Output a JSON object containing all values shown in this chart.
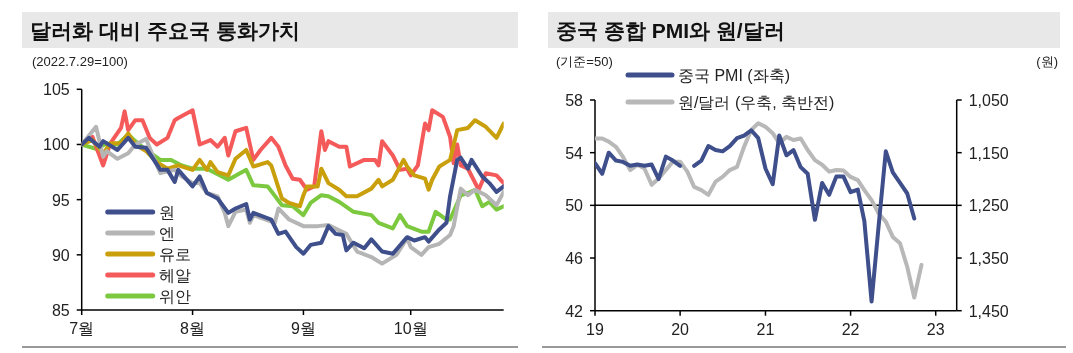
{
  "chart_data": [
    {
      "type": "line",
      "title": "달러화 대비 주요국 통화가치",
      "subtitle": "(2022.7.29=100)",
      "legend": "bottom left",
      "xlim": [
        "--07-01",
        "--10-27"
      ],
      "xticks": [
        {
          "value": "--07-01",
          "label": "7월"
        },
        {
          "value": "--08-01",
          "label": "8월"
        },
        {
          "value": "--09-01",
          "label": "9월"
        },
        {
          "value": "--10-01",
          "label": "10월"
        }
      ],
      "ylim": [
        85,
        105
      ],
      "yticks": [
        85,
        90,
        95,
        100,
        105
      ],
      "series": [
        {
          "name": "원",
          "color": "#3e4f8c",
          "x": [
            "--07-01",
            "--07-03",
            "--07-06",
            "--07-07",
            "--07-11",
            "--07-14",
            "--07-16",
            "--07-19",
            "--07-23",
            "--07-25",
            "--07-27",
            "--07-28",
            "--08-01",
            "--08-03",
            "--08-05",
            "--08-08",
            "--08-11",
            "--08-13",
            "--08-16",
            "--08-17",
            "--08-18",
            "--08-23",
            "--08-25",
            "--08-27",
            "--08-30",
            "--09-01",
            "--09-03",
            "--09-06",
            "--09-08",
            "--09-10",
            "--09-12",
            "--09-13",
            "--09-15",
            "--09-18",
            "--09-20",
            "--09-23",
            "--09-26",
            "--09-30",
            "--10-02",
            "--10-05",
            "--10-06",
            "--10-09",
            "--10-11",
            "--10-12",
            "--10-14",
            "--10-15",
            "--10-17",
            "--10-18",
            "--10-21",
            "--10-23",
            "--10-25",
            "--10-27"
          ],
          "values": [
            100,
            100.6,
            99.8,
            100.3,
            99.5,
            100.6,
            99.8,
            99.7,
            97.7,
            97.7,
            96.6,
            97.7,
            96.2,
            97.1,
            95.6,
            95.1,
            93.8,
            94.2,
            94.6,
            93.2,
            93.8,
            93.2,
            91.9,
            92.1,
            90.7,
            90.1,
            90.9,
            91.1,
            92.6,
            91.9,
            91.8,
            90.4,
            91.1,
            90.6,
            91.4,
            90.3,
            90.1,
            91.6,
            91.3,
            91.6,
            91.2,
            92.3,
            92.9,
            95.3,
            98.6,
            98.8,
            97.8,
            98.6,
            97.1,
            96.5,
            95.7,
            96.2
          ]
        },
        {
          "name": "엔",
          "color": "#b5b5b5",
          "x": [
            "--07-01",
            "--07-05",
            "--07-07",
            "--07-08",
            "--07-11",
            "--07-14",
            "--07-16",
            "--07-19",
            "--07-21",
            "--07-23",
            "--07-27",
            "--07-29",
            "--08-01",
            "--08-03",
            "--08-05",
            "--08-08",
            "--08-10",
            "--08-11",
            "--08-13",
            "--08-16",
            "--08-17",
            "--08-18",
            "--08-24",
            "--08-25",
            "--08-28",
            "--09-01",
            "--09-05",
            "--09-08",
            "--09-13",
            "--09-16",
            "--09-20",
            "--09-23",
            "--09-27",
            "--09-30",
            "--10-01",
            "--10-04",
            "--10-06",
            "--10-09",
            "--10-12",
            "--10-13",
            "--10-15",
            "--10-17",
            "--10-19",
            "--10-22",
            "--10-25",
            "--10-27"
          ],
          "values": [
            100,
            101.6,
            98.9,
            99.4,
            98.7,
            99.2,
            100,
            100.5,
            98.9,
            97.4,
            97.7,
            97.1,
            96.5,
            96.5,
            95.6,
            95.3,
            93.8,
            92.6,
            93.9,
            94.1,
            92.9,
            93.6,
            92.9,
            94.2,
            93.2,
            92.6,
            92.6,
            92.7,
            91.9,
            90.3,
            89.8,
            89.2,
            90.0,
            91.5,
            90.7,
            90.0,
            90.7,
            91.0,
            91.8,
            92.6,
            96.0,
            95.4,
            95.9,
            95.4,
            94.5,
            95.7
          ]
        },
        {
          "name": "유로",
          "color": "#c9a00c",
          "x": [
            "--07-01",
            "--07-04",
            "--07-07",
            "--07-09",
            "--07-12",
            "--07-14",
            "--07-16",
            "--07-19",
            "--07-22",
            "--07-25",
            "--07-28",
            "--08-01",
            "--08-03",
            "--08-05",
            "--08-06",
            "--08-08",
            "--08-11",
            "--08-13",
            "--08-16",
            "--08-18",
            "--08-22",
            "--08-23",
            "--08-26",
            "--08-28",
            "--08-31",
            "--09-01",
            "--09-02",
            "--09-05",
            "--09-06",
            "--09-08",
            "--09-11",
            "--09-13",
            "--09-16",
            "--09-20",
            "--09-22",
            "--09-23",
            "--09-26",
            "--09-29",
            "--09-30",
            "--10-02",
            "--10-05",
            "--10-06",
            "--10-07",
            "--10-09",
            "--10-11",
            "--10-12",
            "--10-14",
            "--10-17",
            "--10-19",
            "--10-22",
            "--10-25",
            "--10-27"
          ],
          "values": [
            100,
            100.4,
            99.2,
            100.1,
            100.1,
            101.0,
            100,
            99.4,
            98.4,
            97.8,
            98.1,
            97.7,
            98.6,
            97.7,
            98.4,
            97.5,
            97.2,
            98.7,
            99.5,
            98.0,
            98.4,
            98.1,
            95.1,
            94.7,
            94.4,
            95.4,
            96.2,
            96.2,
            97.8,
            96.5,
            95.9,
            95.3,
            95.3,
            96.0,
            96.8,
            96.2,
            96.8,
            98.6,
            98.0,
            97.2,
            96.9,
            95.9,
            96.8,
            98.0,
            98.4,
            98.6,
            101.3,
            101.5,
            102.2,
            101.6,
            100.6,
            101.9
          ]
        },
        {
          "name": "헤알",
          "color": "#f55a5a",
          "x": [
            "--07-01",
            "--07-04",
            "--07-07",
            "--07-09",
            "--07-12",
            "--07-13",
            "--07-14",
            "--07-16",
            "--07-18",
            "--07-20",
            "--07-22",
            "--07-25",
            "--07-27",
            "--07-28",
            "--08-01",
            "--08-03",
            "--08-06",
            "--08-08",
            "--08-10",
            "--08-11",
            "--08-13",
            "--08-16",
            "--08-18",
            "--08-20",
            "--08-23",
            "--08-25",
            "--08-27",
            "--08-29",
            "--08-31",
            "--09-02",
            "--09-04",
            "--09-06",
            "--09-07",
            "--09-08",
            "--09-11",
            "--09-13",
            "--09-14",
            "--09-18",
            "--09-21",
            "--09-22",
            "--09-23",
            "--09-26",
            "--09-28",
            "--09-30",
            "--10-01",
            "--10-03",
            "--10-05",
            "--10-06",
            "--10-07",
            "--10-10",
            "--10-12",
            "--10-13",
            "--10-14",
            "--10-15",
            "--10-17",
            "--10-20",
            "--10-22",
            "--10-25",
            "--10-27"
          ],
          "values": [
            100,
            100.7,
            98.1,
            100.1,
            101.5,
            103.0,
            101.3,
            102.2,
            102.2,
            100.6,
            100.0,
            100.6,
            102.2,
            102.4,
            103.1,
            100.0,
            100.4,
            99.8,
            100.6,
            99.0,
            101.2,
            101.5,
            98.6,
            99.5,
            100.6,
            99.8,
            98.1,
            96.9,
            96.8,
            95.9,
            96.2,
            101.2,
            99.5,
            100.3,
            99.8,
            99.8,
            98.0,
            98.6,
            98.6,
            98.1,
            100.3,
            99.0,
            97.7,
            97.8,
            97.2,
            98.1,
            101.9,
            101.3,
            103.1,
            102.5,
            100.7,
            98.3,
            100.0,
            98.1,
            97.8,
            95.9,
            97.4,
            97.2,
            96.5
          ]
        },
        {
          "name": "위안",
          "color": "#7cc940",
          "x": [
            "--07-01",
            "--07-05",
            "--07-08",
            "--07-11",
            "--07-14",
            "--07-16",
            "--07-19",
            "--07-23",
            "--07-26",
            "--07-29",
            "--08-01",
            "--08-05",
            "--08-11",
            "--08-16",
            "--08-18",
            "--08-22",
            "--08-26",
            "--08-29",
            "--09-01",
            "--09-03",
            "--09-06",
            "--09-08",
            "--09-11",
            "--09-15",
            "--09-20",
            "--09-22",
            "--09-26",
            "--09-28",
            "--09-30",
            "--10-04",
            "--10-06",
            "--10-08",
            "--10-11",
            "--10-12",
            "--10-15",
            "--10-17",
            "--10-19",
            "--10-21",
            "--10-23",
            "--10-25",
            "--10-27"
          ],
          "values": [
            100,
            99.6,
            100.1,
            100,
            100.9,
            100.3,
            99.5,
            98.6,
            98.6,
            98.1,
            97.8,
            97.8,
            96.8,
            97.7,
            96.3,
            96.2,
            94.5,
            94.4,
            93.6,
            94.7,
            95.4,
            95.3,
            94.8,
            93.9,
            93.6,
            92.9,
            92.4,
            93.6,
            92.6,
            92.1,
            92.1,
            93.9,
            93.2,
            93.2,
            95.4,
            95.6,
            95.9,
            94.4,
            94.8,
            94.1,
            94.4
          ]
        }
      ]
    },
    {
      "type": "line",
      "title": "중국 종합 PMI와 원/달러",
      "ylabel": "(기준=50)",
      "y2label": "(원)",
      "legend": "top left",
      "x": [
        "2019-01",
        "2019-02",
        "2019-03",
        "2019-04",
        "2019-05",
        "2019-06",
        "2019-07",
        "2019-08",
        "2019-09",
        "2019-10",
        "2019-11",
        "2019-12",
        "2020-01",
        "2020-02",
        "2020-03",
        "2020-04",
        "2020-05",
        "2020-06",
        "2020-07",
        "2020-08",
        "2020-09",
        "2020-10",
        "2020-11",
        "2020-12",
        "2021-01",
        "2021-02",
        "2021-03",
        "2021-04",
        "2021-05",
        "2021-06",
        "2021-07",
        "2021-08",
        "2021-09",
        "2021-10",
        "2021-11",
        "2021-12",
        "2022-01",
        "2022-02",
        "2022-03",
        "2022-04",
        "2022-05",
        "2022-06",
        "2022-07",
        "2022-08",
        "2022-09",
        "2022-10",
        "2022-11"
      ],
      "xlim": [
        "2019-01",
        "2023-04"
      ],
      "xticks": [
        {
          "value": "2019-01",
          "label": "19"
        },
        {
          "value": "2020-01",
          "label": "20"
        },
        {
          "value": "2021-01",
          "label": "21"
        },
        {
          "value": "2022-01",
          "label": "22"
        },
        {
          "value": "2023-01",
          "label": "23"
        }
      ],
      "ylim": [
        42,
        58
      ],
      "yticks": [
        42,
        46,
        50,
        54,
        58
      ],
      "y2lim": [
        1450,
        1050
      ],
      "y2ticks": [
        {
          "value": 1050,
          "label": "1,050"
        },
        {
          "value": 1150,
          "label": "1,150"
        },
        {
          "value": 1250,
          "label": "1,250"
        },
        {
          "value": 1350,
          "label": "1,350"
        },
        {
          "value": 1450,
          "label": "1,450"
        }
      ],
      "ref_lines": [
        {
          "axis": "y",
          "value": 50,
          "color": "#000000"
        }
      ],
      "series": [
        {
          "name": "중국 PMI (좌축)",
          "color": "#3e4f8c",
          "values": [
            53.2,
            52.4,
            54.0,
            53.4,
            53.3,
            53.0,
            53.1,
            53.0,
            53.1,
            52.0,
            53.7,
            53.4,
            53.0,
            null,
            53.0,
            53.4,
            54.5,
            54.2,
            54.1,
            54.5,
            55.1,
            55.3,
            55.7,
            55.1,
            52.8,
            51.6,
            55.3,
            53.8,
            54.2,
            52.9,
            52.4,
            48.9,
            51.7,
            50.8,
            52.2,
            52.2,
            51.0,
            51.2,
            48.8,
            42.7,
            48.4,
            54.1,
            52.5,
            51.7,
            50.9,
            49.0,
            null
          ]
        },
        {
          "name": "원/달러 (우축, 축반전)",
          "color": "#b8b8b8",
          "axis": "y2",
          "values": [
            1123,
            1123,
            1129,
            1139,
            1158,
            1183,
            1173,
            1180,
            1211,
            1199,
            1183,
            1167,
            1167,
            1186,
            1215,
            1221,
            1230,
            1205,
            1196,
            1183,
            1177,
            1139,
            1107,
            1094,
            1101,
            1113,
            1132,
            1120,
            1126,
            1123,
            1145,
            1164,
            1173,
            1186,
            1183,
            1184,
            1196,
            1202,
            1221,
            1240,
            1265,
            1281,
            1310,
            1322,
            1367,
            1425,
            1363
          ]
        }
      ]
    }
  ]
}
